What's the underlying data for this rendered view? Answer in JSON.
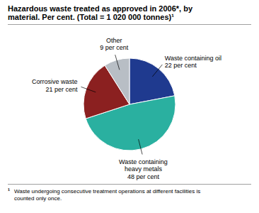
{
  "chart_data": {
    "type": "pie",
    "title": "Hazardous waste treated as approved in 2006*, by\nmaterial. Per cent. (Total = 1 020 000 tonnes)¹",
    "categories": [
      "Waste containing oil",
      "Waste containing\nheavy metals",
      "Corrosive waste",
      "Other"
    ],
    "values": [
      22,
      48,
      21,
      9
    ],
    "value_labels": [
      "22 per cent",
      "48 per cent",
      "21 per cent",
      "9 per cent"
    ],
    "data_labels": true,
    "colors": [
      "#1f3a8f",
      "#2ab0a0",
      "#8b2020",
      "#b8bec5"
    ],
    "footnote": {
      "marker": "¹",
      "text": "Waste undergoing consecutive treatment operations at different facilities is\ncounted only once."
    }
  }
}
